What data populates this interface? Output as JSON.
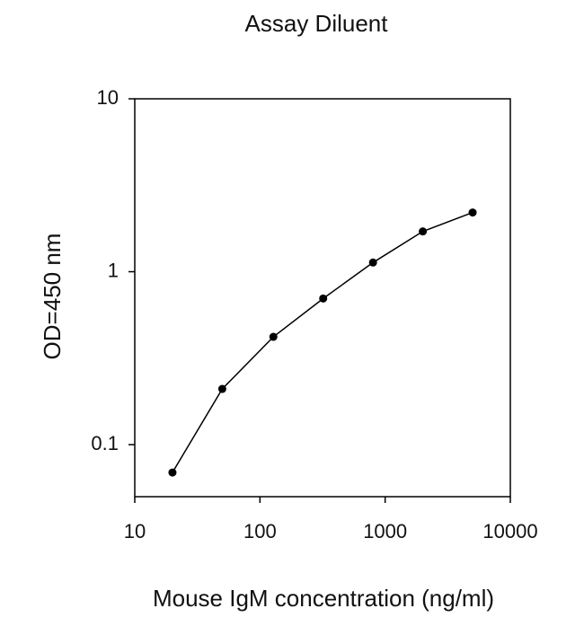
{
  "chart_data": {
    "type": "line",
    "title": "Assay Diluent",
    "x_label": "Mouse IgM concentration (ng/ml)",
    "y_label": "OD=450 nm",
    "x": [
      20,
      50,
      128,
      320,
      800,
      2000,
      5000
    ],
    "series": [
      {
        "color": "#000000",
        "values": [
          0.069,
          0.21,
          0.42,
          0.7,
          1.13,
          1.71,
          2.2
        ]
      }
    ],
    "xscale": "log",
    "yscale": "log",
    "xlim": [
      10,
      10000
    ],
    "xticks": [
      10,
      100,
      1000,
      10000
    ],
    "ylim": [
      0.05,
      10
    ],
    "yticks": [
      0.1,
      1,
      10
    ]
  }
}
